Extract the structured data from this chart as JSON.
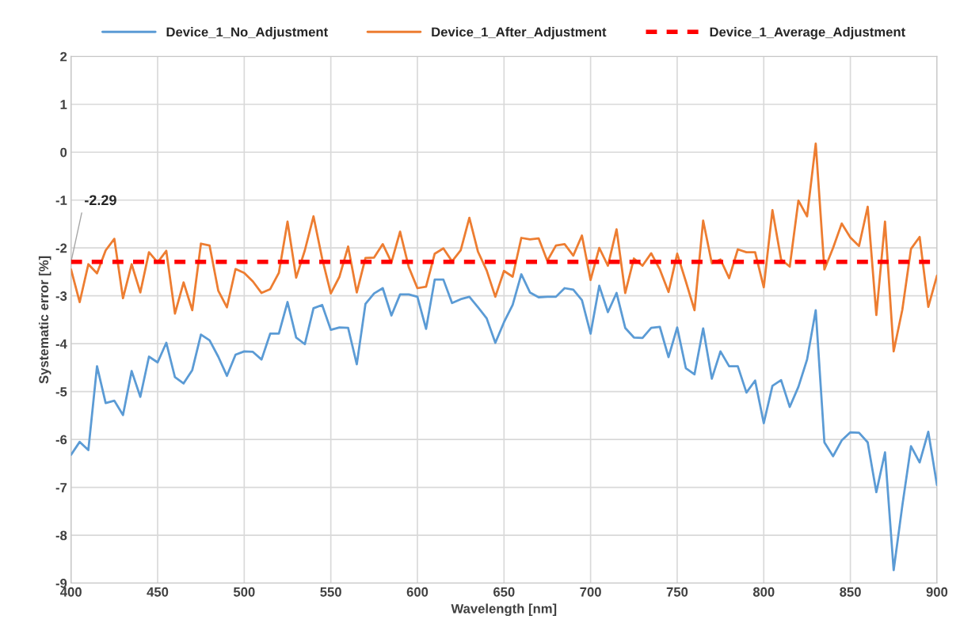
{
  "chart_data": {
    "type": "line",
    "xlabel": "Wavelength [nm]",
    "ylabel": "Systematic error [%]",
    "x": [
      400,
      405,
      410,
      415,
      420,
      425,
      430,
      435,
      440,
      445,
      450,
      455,
      460,
      465,
      470,
      475,
      480,
      485,
      490,
      495,
      500,
      505,
      510,
      515,
      520,
      525,
      530,
      535,
      540,
      545,
      550,
      555,
      560,
      565,
      570,
      575,
      580,
      585,
      590,
      595,
      600,
      605,
      610,
      615,
      620,
      625,
      630,
      635,
      640,
      645,
      650,
      655,
      660,
      665,
      670,
      675,
      680,
      685,
      690,
      695,
      700,
      705,
      710,
      715,
      720,
      725,
      730,
      735,
      740,
      745,
      750,
      755,
      760,
      765,
      770,
      775,
      780,
      785,
      790,
      795,
      800,
      805,
      810,
      815,
      820,
      825,
      830,
      835,
      840,
      845,
      850,
      855,
      860,
      865,
      870,
      875,
      880,
      885,
      890,
      895,
      900
    ],
    "series": [
      {
        "name": "Device_1_No_Adjustment",
        "color": "#5b9bd5",
        "values": [
          -6.32,
          -6.05,
          -6.22,
          -4.47,
          -5.24,
          -5.19,
          -5.49,
          -4.57,
          -5.11,
          -4.27,
          -4.39,
          -3.98,
          -4.7,
          -4.83,
          -4.55,
          -3.81,
          -3.93,
          -4.27,
          -4.67,
          -4.23,
          -4.16,
          -4.17,
          -4.33,
          -3.79,
          -3.79,
          -3.13,
          -3.87,
          -4.01,
          -3.26,
          -3.19,
          -3.71,
          -3.66,
          -3.67,
          -4.43,
          -3.17,
          -2.95,
          -2.84,
          -3.41,
          -2.97,
          -2.97,
          -3.02,
          -3.69,
          -2.66,
          -2.66,
          -3.15,
          -3.07,
          -3.02,
          -3.24,
          -3.47,
          -3.98,
          -3.55,
          -3.19,
          -2.55,
          -2.93,
          -3.03,
          -3.02,
          -3.02,
          -2.84,
          -2.87,
          -3.09,
          -3.79,
          -2.79,
          -3.34,
          -2.94,
          -3.67,
          -3.87,
          -3.88,
          -3.67,
          -3.65,
          -4.28,
          -3.66,
          -4.51,
          -4.64,
          -3.68,
          -4.73,
          -4.16,
          -4.47,
          -4.47,
          -5.02,
          -4.77,
          -5.66,
          -4.88,
          -4.76,
          -5.32,
          -4.9,
          -4.33,
          -3.3,
          -6.06,
          -6.35,
          -6.02,
          -5.85,
          -5.86,
          -6.06,
          -7.1,
          -6.27,
          -8.73,
          -7.38,
          -6.14,
          -6.48,
          -5.84,
          -6.95
        ]
      },
      {
        "name": "Device_1_After_Adjustment",
        "color": "#ed7d31",
        "values": [
          -2.45,
          -3.13,
          -2.34,
          -2.53,
          -2.05,
          -1.81,
          -3.05,
          -2.34,
          -2.93,
          -2.09,
          -2.3,
          -2.06,
          -3.37,
          -2.72,
          -3.3,
          -1.91,
          -1.95,
          -2.89,
          -3.24,
          -2.44,
          -2.52,
          -2.7,
          -2.94,
          -2.86,
          -2.52,
          -1.45,
          -2.62,
          -2.05,
          -1.34,
          -2.22,
          -2.95,
          -2.6,
          -1.97,
          -2.93,
          -2.21,
          -2.2,
          -1.92,
          -2.3,
          -1.66,
          -2.4,
          -2.84,
          -2.81,
          -2.12,
          -2.01,
          -2.28,
          -2.05,
          -1.37,
          -2.08,
          -2.47,
          -3.02,
          -2.48,
          -2.6,
          -1.79,
          -1.82,
          -1.8,
          -2.27,
          -1.95,
          -1.92,
          -2.16,
          -1.74,
          -2.67,
          -2.0,
          -2.37,
          -1.61,
          -2.94,
          -2.22,
          -2.37,
          -2.11,
          -2.45,
          -2.92,
          -2.12,
          -2.7,
          -3.3,
          -1.43,
          -2.32,
          -2.24,
          -2.63,
          -2.03,
          -2.09,
          -2.09,
          -2.82,
          -1.21,
          -2.24,
          -2.39,
          -1.01,
          -1.34,
          0.18,
          -2.45,
          -2.0,
          -1.49,
          -1.78,
          -1.96,
          -1.14,
          -3.4,
          -1.45,
          -4.16,
          -3.29,
          -2.02,
          -1.77,
          -3.23,
          -2.58
        ]
      },
      {
        "name": "Device_1_Average_Adjustment",
        "color": "#ff0000",
        "line_style": "dashed",
        "x": [
          400,
          900
        ],
        "values": [
          -2.29,
          -2.29
        ]
      }
    ],
    "annotations": [
      {
        "text": "-2.29",
        "x": 400,
        "y": -2.29
      }
    ],
    "xlim": [
      400,
      900
    ],
    "xticks": [
      400,
      450,
      500,
      550,
      600,
      650,
      700,
      750,
      800,
      850,
      900
    ],
    "ylim": [
      -9,
      2
    ],
    "yticks": [
      -9,
      -8,
      -7,
      -6,
      -5,
      -4,
      -3,
      -2,
      -1,
      0,
      1,
      2
    ],
    "grid": true,
    "legend": "top",
    "marker": "none"
  }
}
